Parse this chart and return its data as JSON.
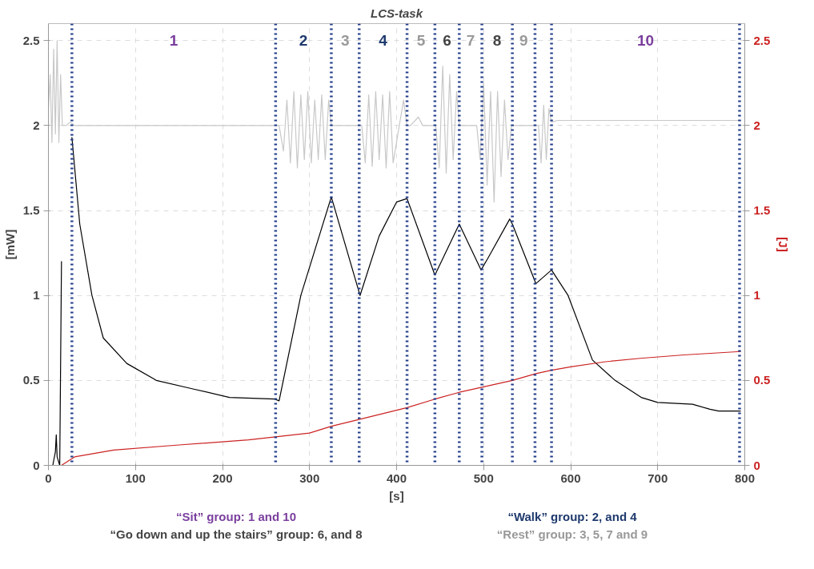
{
  "chart_data": {
    "type": "line",
    "title": "LCS-task",
    "xlabel": "[s]",
    "ylabel": "[mW]",
    "y2label": "[J]",
    "xlim": [
      0,
      800
    ],
    "xticks": [
      0,
      100,
      200,
      300,
      400,
      500,
      600,
      700,
      800
    ],
    "ylim": [
      0,
      2.6
    ],
    "yticks": [
      0,
      0.5,
      1,
      1.5,
      2,
      2.5
    ],
    "y2lim": [
      0,
      2.6
    ],
    "y2ticks": [
      0,
      0.5,
      1,
      1.5,
      2,
      2.5
    ],
    "grid": true,
    "marker": "none",
    "series": [
      {
        "color": "#c8c8c8",
        "line_style": "solid",
        "x": [
          0,
          2,
          4,
          6,
          8,
          10,
          12,
          14,
          16,
          20,
          25,
          30,
          100,
          200,
          265,
          270,
          274,
          278,
          282,
          286,
          290,
          294,
          298,
          302,
          306,
          310,
          314,
          318,
          322,
          325,
          330,
          360,
          364,
          368,
          372,
          376,
          380,
          384,
          388,
          392,
          396,
          408,
          412,
          416,
          425,
          430,
          445,
          449,
          453,
          457,
          461,
          465,
          469,
          472,
          480,
          492,
          496,
          500,
          504,
          508,
          512,
          516,
          520,
          524,
          528,
          532,
          540,
          563,
          566,
          569,
          572,
          575,
          578,
          585,
          700,
          795
        ],
        "values": [
          2.1,
          2.3,
          1.9,
          2.45,
          1.95,
          2.5,
          1.9,
          2.3,
          2.0,
          2.0,
          2.02,
          2.0,
          2.0,
          2.0,
          2.0,
          1.85,
          2.15,
          1.78,
          2.2,
          1.75,
          2.18,
          1.8,
          2.2,
          1.78,
          2.15,
          1.8,
          2.18,
          1.8,
          2.15,
          2.0,
          2.0,
          2.0,
          1.78,
          2.18,
          1.76,
          2.2,
          1.8,
          2.18,
          1.75,
          2.2,
          1.78,
          2.15,
          2.0,
          2.0,
          2.05,
          2.0,
          2.0,
          1.75,
          2.35,
          1.72,
          2.3,
          1.8,
          2.2,
          2.0,
          2.0,
          2.0,
          1.8,
          2.25,
          1.65,
          2.2,
          1.55,
          2.2,
          1.7,
          2.15,
          1.8,
          2.0,
          2.0,
          2.0,
          1.78,
          2.12,
          1.8,
          2.1,
          2.02,
          2.03,
          2.03,
          2.03
        ]
      },
      {
        "color": "#000000",
        "line_style": "solid",
        "x": [
          0,
          5,
          8,
          9,
          10,
          13,
          15,
          17,
          19,
          27,
          36,
          50,
          63,
          90,
          124,
          166,
          208,
          260,
          265,
          290,
          325,
          358,
          380,
          400,
          412,
          444,
          472,
          497,
          505,
          530,
          533,
          560,
          578,
          597,
          625,
          651,
          681,
          700,
          740,
          760,
          770,
          795
        ],
        "values": [
          0,
          0,
          0.08,
          0.18,
          0.05,
          0,
          1.2,
          null,
          null,
          1.93,
          1.42,
          1.0,
          0.75,
          0.6,
          0.5,
          0.45,
          0.4,
          0.39,
          0.38,
          1.0,
          1.58,
          1.0,
          1.35,
          1.55,
          1.57,
          1.12,
          1.42,
          1.15,
          1.22,
          1.45,
          1.42,
          1.07,
          1.15,
          1.0,
          0.62,
          0.5,
          0.4,
          0.37,
          0.36,
          0.33,
          0.32,
          0.32
        ]
      },
      {
        "color": "#cc2222",
        "line_style": "solid",
        "axis": "y2",
        "x": [
          0,
          15,
          30,
          75,
          150,
          230,
          265,
          300,
          325,
          357,
          412,
          444,
          472,
          498,
          533,
          560,
          578,
          600,
          640,
          680,
          730,
          795
        ],
        "values": [
          0,
          0,
          0.05,
          0.09,
          0.12,
          0.15,
          0.17,
          0.19,
          0.23,
          0.27,
          0.34,
          0.39,
          0.43,
          0.46,
          0.5,
          0.54,
          0.56,
          0.58,
          0.61,
          0.63,
          0.65,
          0.67
        ]
      }
    ],
    "ref_lines": [
      {
        "axis": "x",
        "value": 27,
        "color": "#1f3a8a",
        "line_style": "dotted"
      },
      {
        "axis": "x",
        "value": 261,
        "color": "#1f3a8a",
        "line_style": "dotted"
      },
      {
        "axis": "x",
        "value": 325,
        "color": "#1f3a8a",
        "line_style": "dotted"
      },
      {
        "axis": "x",
        "value": 357,
        "color": "#1f3a8a",
        "line_style": "dotted"
      },
      {
        "axis": "x",
        "value": 412,
        "color": "#1f3a8a",
        "line_style": "dotted"
      },
      {
        "axis": "x",
        "value": 444,
        "color": "#1f3a8a",
        "line_style": "dotted"
      },
      {
        "axis": "x",
        "value": 472,
        "color": "#1f3a8a",
        "line_style": "dotted"
      },
      {
        "axis": "x",
        "value": 498,
        "color": "#1f3a8a",
        "line_style": "dotted"
      },
      {
        "axis": "x",
        "value": 533,
        "color": "#1f3a8a",
        "line_style": "dotted"
      },
      {
        "axis": "x",
        "value": 559,
        "color": "#1f3a8a",
        "line_style": "dotted"
      },
      {
        "axis": "x",
        "value": 578,
        "color": "#1f3a8a",
        "line_style": "dotted"
      },
      {
        "axis": "x",
        "value": 794,
        "color": "#1f3a8a",
        "line_style": "dotted"
      }
    ],
    "annotations": [
      "1",
      "2",
      "3",
      "4",
      "5",
      "6",
      "7",
      "8",
      "9",
      "10",
      "“Sit” group: 1 and 10",
      "“Walk” group: 2, and 4",
      "“Go down and up the stairs” group: 6, and 8",
      "“Rest” group: 3, 5, 7 and 9"
    ]
  }
}
